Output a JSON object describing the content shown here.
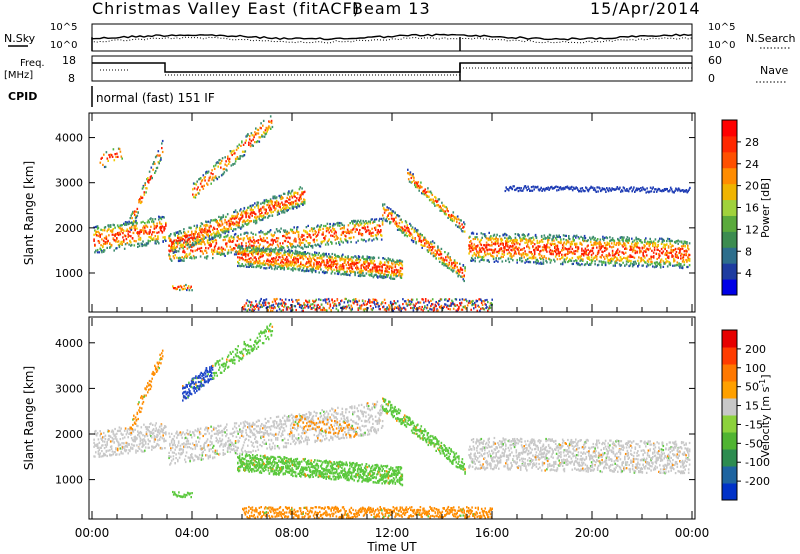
{
  "header": {
    "title": "Christmas Valley East (fitACF)",
    "beam": "Beam 13",
    "date": "15/Apr/2014"
  },
  "top_panel": {
    "left_label": "N.Sky",
    "right_label": "N.Search",
    "left_ticks": [
      "10^5",
      "10^0"
    ],
    "right_ticks": [
      "10^5",
      "10^0"
    ]
  },
  "freq_panel": {
    "left_label_1": "Freq.",
    "left_label_2": "[MHz]",
    "right_label": "Nave",
    "left_ticks": [
      "18",
      "8"
    ],
    "right_ticks": [
      "60",
      "0"
    ]
  },
  "cpid": {
    "label": "CPID",
    "value": "normal (fast) 151 IF"
  },
  "chart_data": [
    {
      "type": "heatmap",
      "name": "power",
      "ylabel": "Slant Range [km]",
      "y_ticks": [
        1000,
        2000,
        3000,
        4000
      ],
      "ylim": [
        180,
        4500
      ],
      "x_ticks": [
        "00:00",
        "04:00",
        "08:00",
        "12:00",
        "16:00",
        "20:00",
        "00:00"
      ],
      "colorbar": {
        "label": "Power [dB]",
        "ticks": [
          "28",
          "24",
          "20",
          "16",
          "12",
          "8",
          "4"
        ],
        "colors": [
          "#0000e6",
          "#1e3ca0",
          "#2d6e8c",
          "#3c8c50",
          "#5aaa3c",
          "#a0d23c",
          "#f0b400",
          "#ff8c00",
          "#ff5000",
          "#ff2800",
          "#ff0000"
        ]
      }
    },
    {
      "type": "heatmap",
      "name": "velocity",
      "ylabel": "Slant Range [km]",
      "y_ticks": [
        1000,
        2000,
        3000,
        4000
      ],
      "ylim": [
        180,
        4500
      ],
      "x_ticks": [
        "00:00",
        "04:00",
        "08:00",
        "12:00",
        "16:00",
        "20:00",
        "00:00"
      ],
      "xlabel": "Time UT",
      "colorbar": {
        "label": "Velocity [m s",
        "label_sup": "-1",
        "label_end": "]",
        "ticks": [
          "200",
          "100",
          "50",
          "15",
          "-15",
          "-50",
          "-100",
          "-200"
        ],
        "colors": [
          "#0032c8",
          "#1e64a0",
          "#2d8c50",
          "#50b432",
          "#8cd23c",
          "#c8c8c8",
          "#ffa000",
          "#ff7800",
          "#ff3c00",
          "#e60000"
        ]
      }
    }
  ],
  "colors": {
    "power_red": "#ff1e00",
    "power_orange": "#ff8c00",
    "power_yellow": "#f0c800",
    "power_green": "#50b43c",
    "power_teal": "#3c8c6e",
    "power_blue": "#1e3cb4",
    "vel_grey": "#c8c8c8",
    "vel_green": "#5ac83c",
    "vel_orange": "#ff8c00",
    "vel_blue": "#1e46c8"
  }
}
